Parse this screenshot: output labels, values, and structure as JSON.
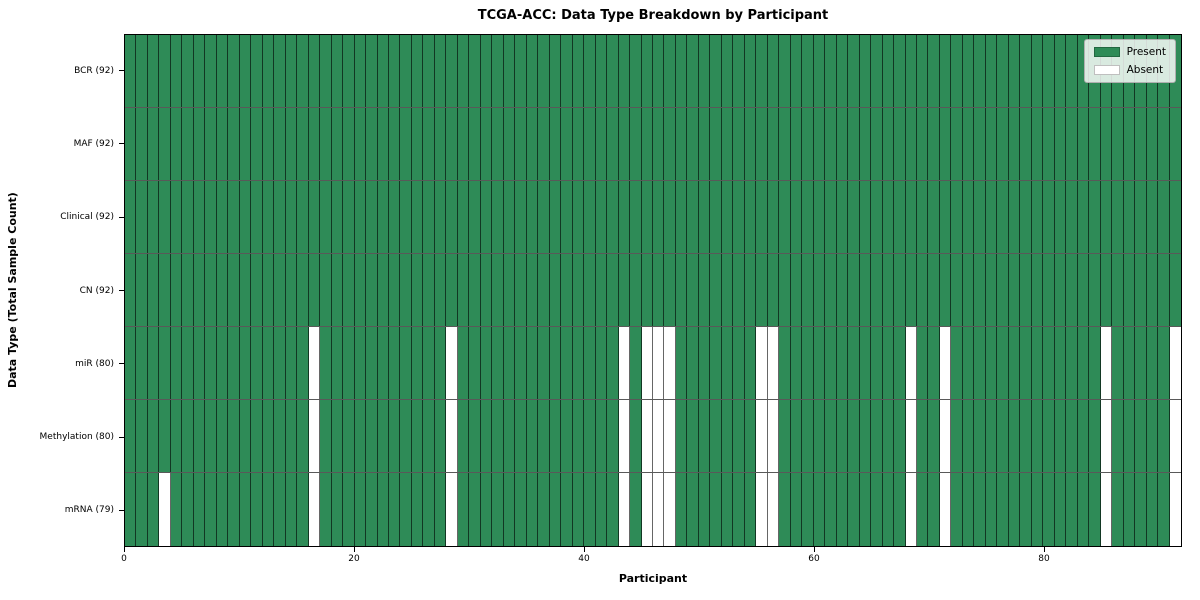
{
  "chart_data": {
    "type": "heatmap",
    "title": "TCGA-ACC: Data Type Breakdown by Participant",
    "xlabel": "Participant",
    "ylabel": "Data Type (Total Sample Count)",
    "n_participants": 92,
    "x_ticks": [
      0,
      20,
      40,
      60,
      80
    ],
    "colors": {
      "present": "#2e8b57",
      "absent": "#ffffff",
      "gridline": "rgba(0,0,0,0.6)",
      "plot_border": "#000000",
      "legend_border": "#b0b0b0"
    },
    "legend": [
      {
        "label": "Present",
        "color": "#2e8b57"
      },
      {
        "label": "Absent",
        "color": "#ffffff"
      }
    ],
    "rows": [
      {
        "label": "BCR (92)",
        "total_present": 92,
        "absent_participants": []
      },
      {
        "label": "MAF (92)",
        "total_present": 92,
        "absent_participants": []
      },
      {
        "label": "Clinical (92)",
        "total_present": 92,
        "absent_participants": []
      },
      {
        "label": "CN (92)",
        "total_present": 92,
        "absent_participants": []
      },
      {
        "label": "miR (80)",
        "total_present": 80,
        "absent_participants": [
          16,
          28,
          43,
          45,
          46,
          47,
          55,
          56,
          68,
          71,
          85,
          91
        ]
      },
      {
        "label": "Methylation (80)",
        "total_present": 80,
        "absent_participants": [
          16,
          28,
          43,
          45,
          46,
          47,
          55,
          56,
          68,
          71,
          85,
          91
        ]
      },
      {
        "label": "mRNA (79)",
        "total_present": 79,
        "absent_participants": [
          3,
          16,
          28,
          43,
          45,
          46,
          47,
          55,
          56,
          68,
          71,
          85,
          91
        ]
      }
    ]
  }
}
